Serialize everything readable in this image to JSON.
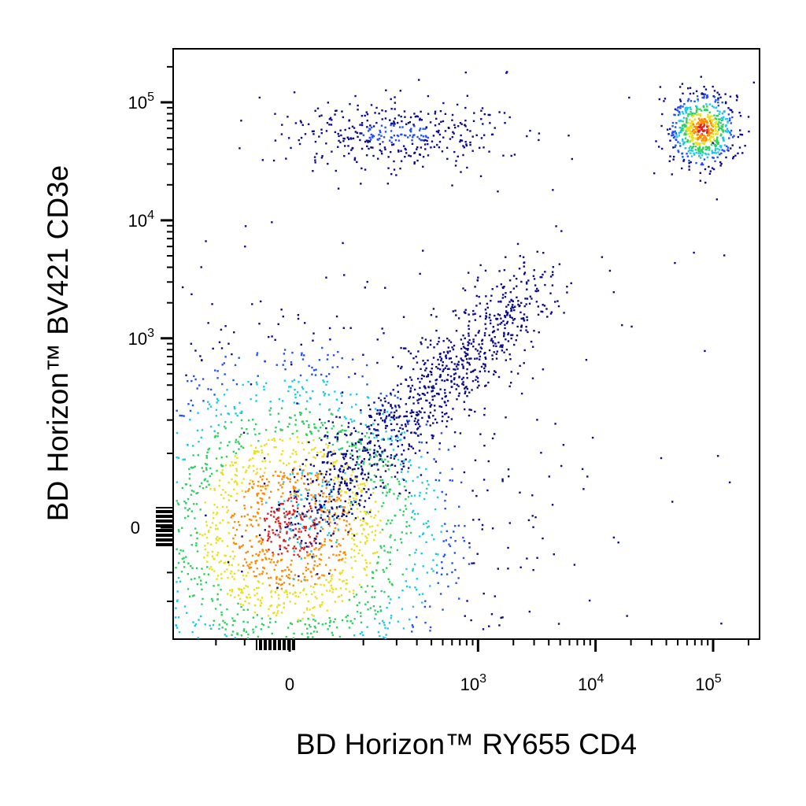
{
  "chart_data": {
    "type": "scatter",
    "subtype": "flow-cytometry-pseudocolor-density",
    "title": "",
    "xlabel": "BD Horizon™ RY655 CD4",
    "ylabel": "BD Horizon™ BV421 CD3e",
    "x_scale": "biexponential",
    "y_scale": "biexponential",
    "xlim": [
      -200,
      150000
    ],
    "ylim": [
      -200,
      200000
    ],
    "x_ticks": [
      {
        "value": 0,
        "label": "0",
        "base": "",
        "exp": ""
      },
      {
        "value": 1000,
        "label": "",
        "base": "10",
        "exp": "3"
      },
      {
        "value": 10000,
        "label": "",
        "base": "10",
        "exp": "4"
      },
      {
        "value": 100000,
        "label": "",
        "base": "10",
        "exp": "5"
      }
    ],
    "y_ticks": [
      {
        "value": 0,
        "label": "0",
        "base": "",
        "exp": ""
      },
      {
        "value": 1000,
        "label": "",
        "base": "10",
        "exp": "3"
      },
      {
        "value": 10000,
        "label": "",
        "base": "10",
        "exp": "4"
      },
      {
        "value": 100000,
        "label": "",
        "base": "10",
        "exp": "5"
      }
    ],
    "grid": false,
    "legend": "none",
    "color_scale": [
      "#0a0a8c",
      "#2050ff",
      "#20c8e8",
      "#30d060",
      "#e8e020",
      "#ff8c00",
      "#e02020"
    ],
    "populations": [
      {
        "x_center": 0,
        "y_center": 0,
        "x_spread": 150,
        "y_spread": 150,
        "count": 2600,
        "density": "high"
      },
      {
        "x_center": 400,
        "y_center": 500,
        "x_spread": 300,
        "y_spread": 400,
        "count": 1100,
        "density": "medium"
      },
      {
        "x_center": 200,
        "y_center": 55000,
        "x_spread": 400,
        "y_spread": 20000,
        "count": 380,
        "density": "low"
      },
      {
        "x_center": 80000,
        "y_center": 60000,
        "x_spread": 30000,
        "y_spread": 25000,
        "count": 650,
        "density": "high"
      },
      {
        "x_center": 5000,
        "y_center": 3000,
        "x_spread": 20000,
        "y_spread": 20000,
        "count": 90,
        "density": "sparse"
      }
    ]
  }
}
